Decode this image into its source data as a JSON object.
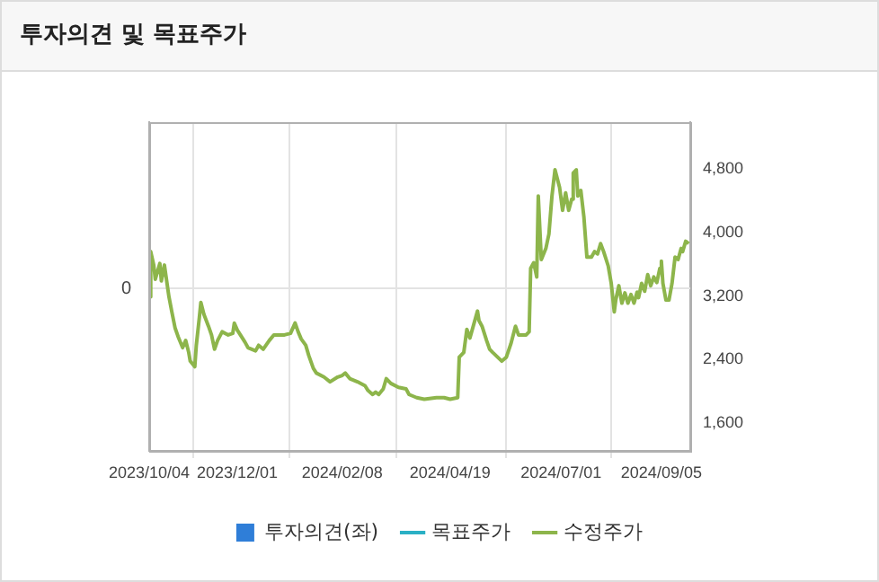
{
  "chart_data": {
    "type": "line",
    "title": "투자의견 및 목표주가",
    "x": [
      "2023-10-04",
      "2023-10-05",
      "2023-10-07",
      "2023-10-08",
      "2023-10-11",
      "2023-10-12",
      "2023-10-14",
      "2023-10-17",
      "2023-10-19",
      "2023-10-21",
      "2023-10-23",
      "2023-10-26",
      "2023-10-28",
      "2023-10-30",
      "2023-10-31",
      "2023-11-03",
      "2023-11-04",
      "2023-11-06",
      "2023-11-07",
      "2023-11-09",
      "2023-11-12",
      "2023-11-14",
      "2023-11-16",
      "2023-11-18",
      "2023-11-21",
      "2023-11-25",
      "2023-11-28",
      "2023-11-29",
      "2023-12-01",
      "2023-12-03",
      "2023-12-06",
      "2023-12-08",
      "2023-12-13",
      "2023-12-15",
      "2023-12-18",
      "2023-12-22",
      "2023-12-25",
      "2024-01-01",
      "2024-01-05",
      "2024-01-08",
      "2024-01-10",
      "2024-01-12",
      "2024-01-15",
      "2024-01-17",
      "2024-01-20",
      "2024-01-22",
      "2024-01-27",
      "2024-01-31",
      "2024-02-05",
      "2024-02-08",
      "2024-02-10",
      "2024-02-13",
      "2024-02-18",
      "2024-02-23",
      "2024-02-25",
      "2024-02-28",
      "2024-03-01",
      "2024-03-03",
      "2024-03-06",
      "2024-03-08",
      "2024-03-11",
      "2024-03-16",
      "2024-03-21",
      "2024-03-23",
      "2024-03-28",
      "2024-04-02",
      "2024-04-10",
      "2024-04-15",
      "2024-04-19",
      "2024-04-24",
      "2024-04-25",
      "2024-04-28",
      "2024-04-30",
      "2024-05-02",
      "2024-05-07",
      "2024-05-08",
      "2024-05-10",
      "2024-05-13",
      "2024-05-15",
      "2024-05-17",
      "2024-05-23",
      "2024-05-26",
      "2024-05-29",
      "2024-06-01",
      "2024-06-03",
      "2024-06-08",
      "2024-06-10",
      "2024-06-11",
      "2024-06-13",
      "2024-06-15",
      "2024-06-16",
      "2024-06-18",
      "2024-06-21",
      "2024-06-23",
      "2024-06-25",
      "2024-06-27",
      "2024-06-30",
      "2024-07-02",
      "2024-07-04",
      "2024-07-06",
      "2024-07-08",
      "2024-07-09",
      "2024-07-11",
      "2024-07-12",
      "2024-07-14",
      "2024-07-16",
      "2024-07-18",
      "2024-07-21",
      "2024-07-23",
      "2024-07-25",
      "2024-07-27",
      "2024-07-29",
      "2024-08-01",
      "2024-08-03",
      "2024-08-05",
      "2024-08-06",
      "2024-08-08",
      "2024-08-10",
      "2024-08-12",
      "2024-08-14",
      "2024-08-16",
      "2024-08-18",
      "2024-08-20",
      "2024-08-21",
      "2024-08-23",
      "2024-08-25",
      "2024-08-27",
      "2024-08-29",
      "2024-08-31",
      "2024-09-02",
      "2024-09-04",
      "2024-09-05",
      "2024-09-06",
      "2024-09-08",
      "2024-09-10",
      "2024-09-12",
      "2024-09-14",
      "2024-09-16",
      "2024-09-18",
      "2024-09-19",
      "2024-09-21",
      "2024-09-23"
    ],
    "series": [
      {
        "name": "투자의견(좌)",
        "type": "bar",
        "color": "#2f7ed8",
        "values": [
          null,
          null,
          null,
          null,
          null,
          null,
          null,
          null,
          null,
          null,
          null,
          null,
          null,
          null,
          null,
          null,
          null,
          null,
          null,
          null,
          null,
          null,
          null,
          null,
          null,
          null,
          null,
          null,
          null,
          null,
          null,
          null,
          null,
          null,
          null,
          null,
          null,
          null,
          null,
          null,
          null,
          null,
          null,
          null,
          null,
          null,
          null,
          null,
          null,
          null,
          null,
          null,
          null,
          null,
          null,
          null,
          null,
          null,
          null,
          null,
          null,
          null,
          null,
          null,
          null,
          null,
          null,
          null,
          null,
          null,
          null,
          null,
          null,
          null,
          null,
          null,
          null,
          null,
          null,
          null,
          null,
          null,
          null,
          null,
          null,
          null,
          null,
          null,
          null,
          null,
          null,
          null,
          null,
          null,
          null,
          null,
          null,
          null,
          null,
          null,
          null,
          null,
          null,
          null,
          null,
          null,
          null,
          null,
          null,
          null,
          null,
          null,
          null,
          null,
          null,
          null,
          null,
          null,
          null,
          null,
          null,
          null,
          null,
          null,
          null,
          null,
          null,
          null,
          null,
          null,
          null,
          null,
          null,
          null,
          null,
          null,
          null,
          null,
          null,
          null,
          null,
          null
        ]
      },
      {
        "name": "목표주가",
        "color": "#2ab0c5",
        "axis": "y2",
        "values": [
          null,
          null,
          null,
          null,
          null,
          null,
          null,
          null,
          null,
          null,
          null,
          null,
          null,
          null,
          null,
          null,
          null,
          null,
          null,
          null,
          null,
          null,
          null,
          null,
          null,
          null,
          null,
          null,
          null,
          null,
          null,
          null,
          null,
          null,
          null,
          null,
          null,
          null,
          null,
          null,
          null,
          null,
          null,
          null,
          null,
          null,
          null,
          null,
          null,
          null,
          null,
          null,
          null,
          null,
          null,
          null,
          null,
          null,
          null,
          null,
          null,
          null,
          null,
          null,
          null,
          null,
          null,
          null,
          null,
          null,
          null,
          null,
          null,
          null,
          null,
          null,
          null,
          null,
          null,
          null,
          null,
          null,
          null,
          null,
          null,
          null,
          null,
          null,
          null,
          null,
          null,
          null,
          null,
          null,
          null,
          null,
          null,
          null,
          null,
          null,
          null,
          null,
          null,
          null,
          null,
          null,
          null,
          null,
          null,
          null,
          null,
          null,
          null,
          null,
          null,
          null,
          null,
          null,
          null,
          null,
          null,
          null,
          null,
          null,
          null,
          null,
          null,
          null,
          null,
          null,
          null,
          null,
          null,
          null,
          null,
          null,
          null,
          null,
          null,
          null,
          null,
          null
        ]
      },
      {
        "name": "수정주가",
        "color": "#8db54b",
        "axis": "y2",
        "values": [
          3190,
          3760,
          3590,
          3410,
          3610,
          3390,
          3590,
          3190,
          2990,
          2800,
          2690,
          2550,
          2640,
          2490,
          2380,
          2310,
          2580,
          2930,
          3120,
          2970,
          2820,
          2710,
          2530,
          2640,
          2750,
          2710,
          2730,
          2860,
          2770,
          2710,
          2620,
          2550,
          2510,
          2580,
          2530,
          2640,
          2710,
          2710,
          2730,
          2860,
          2750,
          2660,
          2580,
          2450,
          2290,
          2230,
          2180,
          2120,
          2180,
          2200,
          2230,
          2160,
          2120,
          2070,
          2010,
          1960,
          1990,
          1960,
          2030,
          2160,
          2100,
          2050,
          2030,
          1960,
          1920,
          1900,
          1920,
          1920,
          1900,
          1920,
          2430,
          2490,
          2780,
          2670,
          3010,
          2890,
          2820,
          2640,
          2530,
          2490,
          2380,
          2430,
          2600,
          2820,
          2710,
          2710,
          2750,
          3550,
          3620,
          3440,
          4460,
          3660,
          3800,
          3980,
          4460,
          4790,
          4570,
          4280,
          4500,
          4280,
          4420,
          4750,
          4790,
          4460,
          4530,
          4200,
          3690,
          3690,
          3760,
          3730,
          3860,
          3760,
          3580,
          3360,
          3000,
          3150,
          3330,
          3110,
          3240,
          3110,
          3220,
          3110,
          3250,
          3180,
          3360,
          3260,
          3470,
          3330,
          3440,
          3370,
          3550,
          3640,
          3360,
          3150,
          3150,
          3360,
          3690,
          3660,
          3800,
          3760,
          3890,
          3860
        ]
      }
    ],
    "xlim": [
      "2023-10-04",
      "2024-09-24"
    ],
    "xticks": [
      {
        "value": "2023-10-04",
        "label": "2023/10/04"
      },
      {
        "value": "2023-12-01",
        "label": "2023/12/01"
      },
      {
        "value": "2024-02-08",
        "label": "2024/02/08"
      },
      {
        "value": "2024-04-19",
        "label": "2024/04/19"
      },
      {
        "value": "2024-07-01",
        "label": "2024/07/01"
      },
      {
        "value": "2024-09-05",
        "label": "2024/09/05"
      }
    ],
    "annotations": [
      "0"
    ],
    "y2lim": [
      1250,
      5390
    ],
    "y2ticks": [
      {
        "value": 1600,
        "label": "1,600"
      },
      {
        "value": 2400,
        "label": "2,400"
      },
      {
        "value": 3200,
        "label": "3,200"
      },
      {
        "value": 4000,
        "label": "4,000"
      },
      {
        "value": 4800,
        "label": "4,800"
      }
    ],
    "grid": true,
    "legend": "bottom",
    "marker": "none",
    "line_style": "solid"
  }
}
